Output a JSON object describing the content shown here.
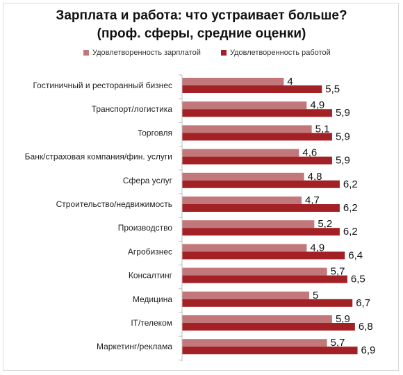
{
  "chart_data": {
    "type": "bar",
    "orientation": "horizontal",
    "title": "Зарплата и работа: что устраивает больше?",
    "subtitle": "(проф. сферы, средние оценки)",
    "categories": [
      "Гостиничный и ресторанный бизнес",
      "Транспорт/логистика",
      "Торговля",
      "Банк/страховая компания/фин. услуги",
      "Сфера услуг",
      "Строительство/недвижимость",
      "Производство",
      "Агробизнес",
      "Консалтинг",
      "Медицина",
      "IT/телеком",
      "Маркетинг/реклама"
    ],
    "series": [
      {
        "name": "Удовлетворенность зарплатой",
        "color": "#c2787a",
        "values": [
          4,
          4.9,
          5.1,
          4.6,
          4.8,
          4.7,
          5.2,
          4.9,
          5.7,
          5,
          5.9,
          5.7
        ],
        "labels": [
          "4",
          "4,9",
          "5,1",
          "4,6",
          "4,8",
          "4,7",
          "5,2",
          "4,9",
          "5,7",
          "5",
          "5,9",
          "5,7"
        ]
      },
      {
        "name": "Удовлетворенность работой",
        "color": "#a32024",
        "values": [
          5.5,
          5.9,
          5.9,
          5.9,
          6.2,
          6.2,
          6.2,
          6.4,
          6.5,
          6.7,
          6.8,
          6.9
        ],
        "labels": [
          "5,5",
          "5,9",
          "5,9",
          "5,9",
          "6,2",
          "6,2",
          "6,2",
          "6,4",
          "6,5",
          "6,7",
          "6,8",
          "6,9"
        ]
      }
    ],
    "xlim": [
      0,
      7
    ],
    "grid": false,
    "legend_position": "top"
  }
}
